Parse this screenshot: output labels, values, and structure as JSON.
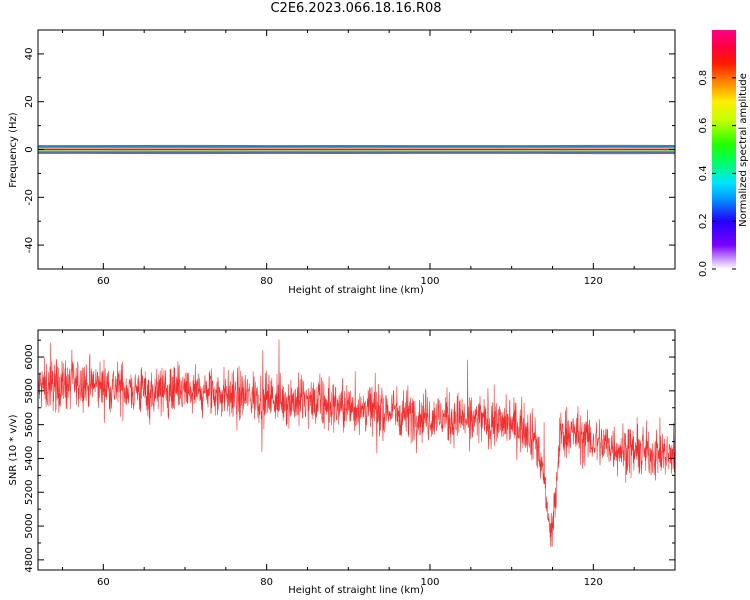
{
  "title": "C2E6.2023.066.18.16.R08",
  "colors": {
    "snr_line": "#f03030",
    "background": "#ffffff",
    "axes": "#000000"
  },
  "chart_data": [
    {
      "type": "heatmap",
      "xlabel": "Height of straight line (km)",
      "ylabel": "Frequency (Hz)",
      "xlim": [
        52,
        130
      ],
      "ylim": [
        -50,
        50
      ],
      "x_ticks": [
        60,
        80,
        100,
        120
      ],
      "y_ticks": [
        -40,
        -20,
        0,
        20,
        40
      ],
      "grid": false,
      "colorbar": {
        "label": "Normalized spectral amplitude",
        "ticks": [
          "0.0",
          "0.2",
          "0.4",
          "0.6",
          "0.8"
        ],
        "tick_values": [
          0.0,
          0.2,
          0.4,
          0.6,
          0.8
        ],
        "range": [
          0,
          1
        ],
        "colormap": "rainbow (violet → blue → cyan → green → yellow → red → magenta)"
      },
      "description_band": "narrow band centered at 0 Hz across all heights"
    },
    {
      "type": "line",
      "xlabel": "Height of straight line (km)",
      "ylabel": "SNR (10 * v/v)",
      "xlim": [
        52,
        130
      ],
      "ylim": [
        4740,
        6160
      ],
      "x_ticks": [
        60,
        80,
        100,
        120
      ],
      "y_ticks": [
        4800,
        5000,
        5200,
        5400,
        5600,
        5800,
        6000
      ],
      "grid": false,
      "series": [
        {
          "x": [
            52,
            55,
            60,
            65,
            70,
            75,
            80,
            85,
            90,
            95,
            100,
            105,
            110,
            112,
            113,
            114,
            114.5,
            115,
            115.5,
            116,
            117,
            120,
            125,
            130
          ],
          "values": [
            5820,
            5840,
            5830,
            5800,
            5790,
            5780,
            5760,
            5730,
            5700,
            5680,
            5650,
            5630,
            5600,
            5580,
            5500,
            5300,
            5000,
            4950,
            5250,
            5550,
            5560,
            5500,
            5440,
            5420
          ]
        }
      ]
    }
  ]
}
